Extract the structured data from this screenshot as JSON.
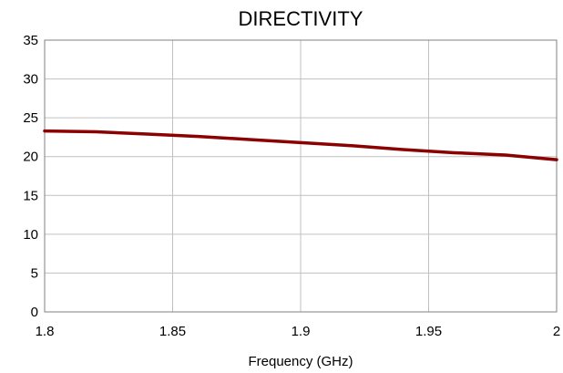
{
  "chart_data": {
    "type": "line",
    "title": "DIRECTIVITY",
    "xlabel": "Frequency (GHz)",
    "ylabel": "",
    "xlim": [
      1.8,
      2.0
    ],
    "ylim": [
      0,
      35
    ],
    "x_ticks": [
      "1.8",
      "1.85",
      "1.9",
      "1.95",
      "2"
    ],
    "y_ticks": [
      "0",
      "5",
      "10",
      "15",
      "20",
      "25",
      "30",
      "35"
    ],
    "grid": true,
    "legend": "none",
    "series": [
      {
        "color": "#8b0000",
        "x": [
          1.8,
          1.82,
          1.84,
          1.86,
          1.88,
          1.9,
          1.92,
          1.94,
          1.96,
          1.98,
          2.0
        ],
        "y": [
          23.3,
          23.2,
          22.9,
          22.6,
          22.2,
          21.8,
          21.4,
          20.9,
          20.5,
          20.2,
          19.6
        ]
      }
    ]
  }
}
